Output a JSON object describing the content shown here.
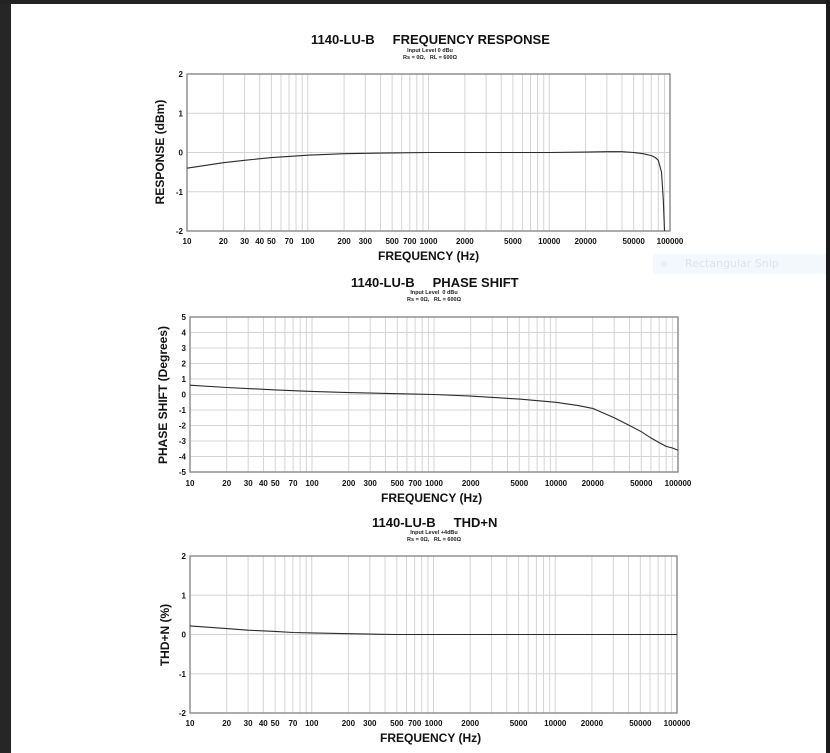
{
  "overlay": {
    "snip_label": "Rectangular Snip"
  },
  "chart_data": [
    {
      "type": "line",
      "title": "1140-LU-B     FREQUENCY RESPONSE",
      "subtitle_line1": "Input Level 0 dBu",
      "subtitle_line2": "Rs = 0Ω,   RL = 600Ω",
      "xlabel": "FREQUENCY (Hz)",
      "ylabel": "RESPONSE (dBm)",
      "xscale": "log",
      "xlim": [
        10,
        100000
      ],
      "ylim": [
        -2,
        2
      ],
      "grid": true,
      "x_tick_labels": [
        "10",
        "20",
        "30",
        "40",
        "50",
        "70",
        "100",
        "200",
        "300",
        "500",
        "700",
        "1000",
        "2000",
        "5000",
        "10000",
        "20000",
        "50000",
        "100000"
      ],
      "y_tick_labels": [
        "2",
        "1",
        "0",
        "-1",
        "-2"
      ],
      "series": [
        {
          "name": "Response",
          "x": [
            10,
            20,
            30,
            50,
            70,
            100,
            200,
            500,
            1000,
            2000,
            5000,
            10000,
            20000,
            30000,
            40000,
            50000,
            60000,
            70000,
            75000,
            80000,
            85000,
            88000,
            90000
          ],
          "values": [
            -0.4,
            -0.26,
            -0.2,
            -0.13,
            -0.1,
            -0.07,
            -0.03,
            -0.01,
            0.0,
            0.0,
            0.0,
            0.0,
            0.01,
            0.02,
            0.02,
            0.0,
            -0.03,
            -0.08,
            -0.12,
            -0.2,
            -0.5,
            -1.2,
            -2.0
          ]
        }
      ]
    },
    {
      "type": "line",
      "title": "1140-LU-B     PHASE SHIFT",
      "subtitle_line1": "Input Level  0 dBu",
      "subtitle_line2": "Rs = 0Ω,   RL = 600Ω",
      "xlabel": "FREQUENCY (Hz)",
      "ylabel": "PHASE SHIFT (Degrees)",
      "xscale": "log",
      "xlim": [
        10,
        100000
      ],
      "ylim": [
        -5,
        5
      ],
      "grid": true,
      "x_tick_labels": [
        "10",
        "20",
        "30",
        "40",
        "50",
        "70",
        "100",
        "200",
        "300",
        "500",
        "700",
        "1000",
        "2000",
        "5000",
        "10000",
        "20000",
        "50000",
        "100000"
      ],
      "y_tick_labels": [
        "5",
        "4",
        "3",
        "2",
        "1",
        "0",
        "-1",
        "-2",
        "-3",
        "-4",
        "-5"
      ],
      "series": [
        {
          "name": "Phase",
          "x": [
            10,
            20,
            50,
            100,
            200,
            500,
            1000,
            2000,
            5000,
            10000,
            15000,
            20000,
            30000,
            40000,
            50000,
            60000,
            70000,
            80000,
            90000,
            100000
          ],
          "values": [
            0.6,
            0.45,
            0.3,
            0.2,
            0.12,
            0.05,
            0.0,
            -0.1,
            -0.3,
            -0.5,
            -0.7,
            -0.9,
            -1.5,
            -2.0,
            -2.4,
            -2.8,
            -3.1,
            -3.35,
            -3.45,
            -3.6
          ]
        }
      ]
    },
    {
      "type": "line",
      "title": "1140-LU-B     THD+N",
      "subtitle_line1": "Input Level +4dBu",
      "subtitle_line2": "Rs = 0Ω,   RL = 600Ω",
      "xlabel": "FREQUENCY (Hz)",
      "ylabel": "THD+N (%)",
      "xscale": "log",
      "xlim": [
        10,
        100000
      ],
      "ylim": [
        -2,
        2
      ],
      "grid": true,
      "x_tick_labels": [
        "10",
        "20",
        "30",
        "40",
        "50",
        "70",
        "100",
        "200",
        "300",
        "500",
        "700",
        "1000",
        "2000",
        "5000",
        "10000",
        "20000",
        "50000",
        "100000"
      ],
      "y_tick_labels": [
        "2",
        "1",
        "0",
        "-1",
        "-2"
      ],
      "series": [
        {
          "name": "THD+N",
          "x": [
            10,
            20,
            30,
            50,
            70,
            100,
            200,
            300,
            500,
            1000,
            10000,
            100000
          ],
          "values": [
            0.22,
            0.15,
            0.11,
            0.08,
            0.05,
            0.04,
            0.02,
            0.01,
            0.0,
            0.0,
            0.0,
            0.0
          ]
        }
      ]
    }
  ]
}
